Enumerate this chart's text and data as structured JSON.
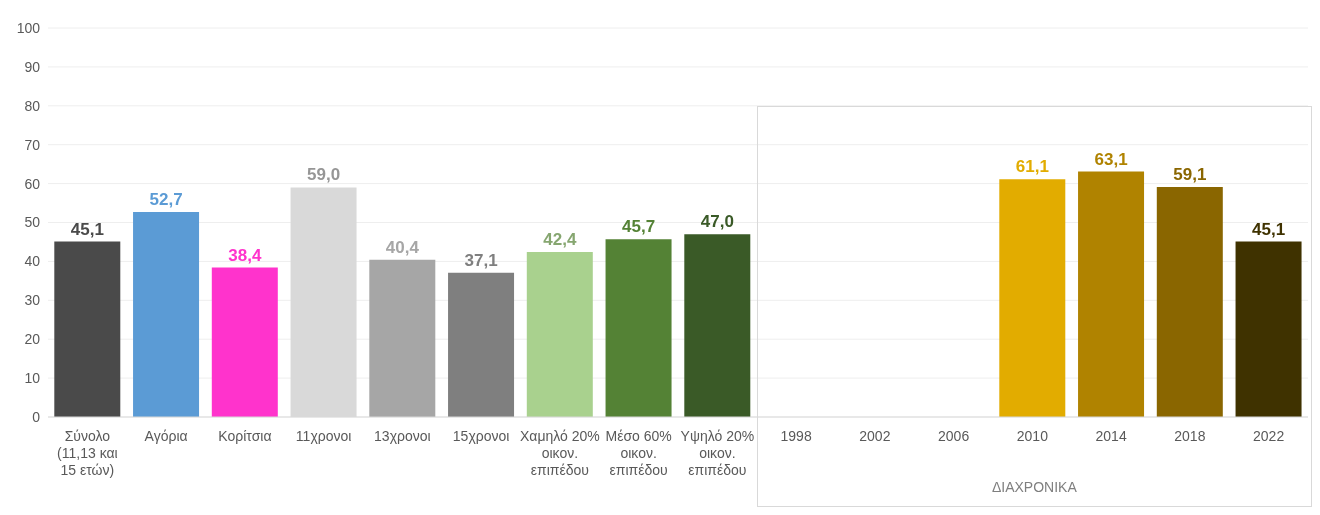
{
  "chart_data": {
    "type": "bar",
    "categories": [
      "Σύνολο (11,13 και 15 ετών)",
      "Αγόρια",
      "Κορίτσια",
      "11χρονοι",
      "13χρονοι",
      "15χρονοι",
      "Χαμηλό 20% οικον. επιπέδου",
      "Μέσο 60% οικον. επιπέδου",
      "Υψηλό 20% οικον. επιπέδου",
      "1998",
      "2002",
      "2006",
      "2010",
      "2014",
      "2018",
      "2022"
    ],
    "values": [
      45.1,
      52.7,
      38.4,
      59.0,
      40.4,
      37.1,
      42.4,
      45.7,
      47.0,
      null,
      null,
      null,
      61.1,
      63.1,
      59.1,
      45.1
    ],
    "value_labels": [
      "45,1",
      "52,7",
      "38,4",
      "59,0",
      "40,4",
      "37,1",
      "42,4",
      "45,7",
      "47,0",
      null,
      null,
      null,
      "61,1",
      "63,1",
      "59,1",
      "45,1"
    ],
    "colors": [
      "#4a4a4a",
      "#5b9bd5",
      "#ff33cc",
      "#d9d9d9",
      "#a6a6a6",
      "#7f7f7f",
      "#a9d18e",
      "#548235",
      "#3a5a27",
      "#ffffff",
      "#ffffff",
      "#ffffff",
      "#e2ac00",
      "#b08300",
      "#8a6600",
      "#3f3200"
    ],
    "ylim": [
      0,
      100
    ],
    "yticks": [
      0,
      10,
      20,
      30,
      40,
      50,
      60,
      70,
      80,
      90,
      100
    ],
    "grid": "y",
    "annotations": [
      "ΔΙΑΧΡΟΝΙΚΑ"
    ]
  }
}
